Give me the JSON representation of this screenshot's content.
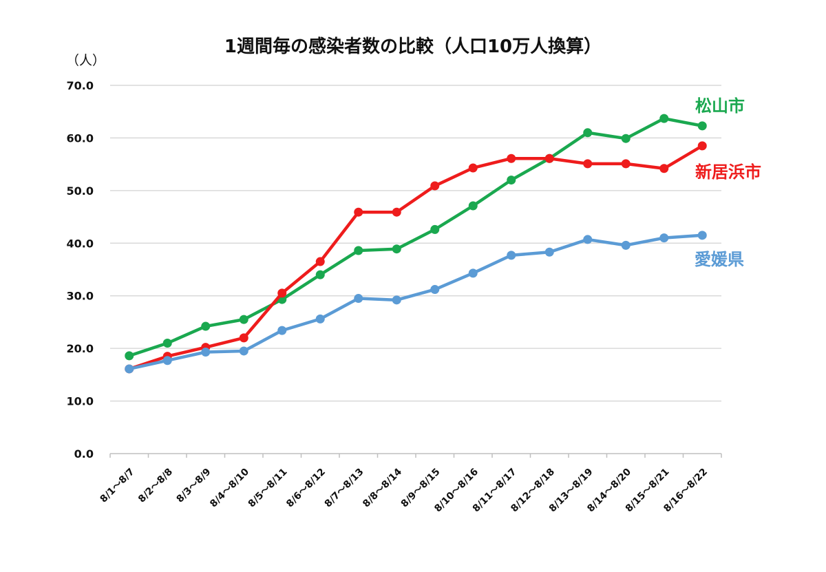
{
  "chart_data": {
    "type": "line",
    "title": "1週間毎の感染者数の比較（人口10万人換算）",
    "ylabel": "（人）",
    "xlabel": "",
    "ylim": [
      0,
      70
    ],
    "yticks": [
      "0.0",
      "10.0",
      "20.0",
      "30.0",
      "40.0",
      "50.0",
      "60.0",
      "70.0"
    ],
    "grid": true,
    "legend": "inline-right",
    "categories": [
      "8/1～8/7",
      "8/2～8/8",
      "8/3～8/9",
      "8/4～8/10",
      "8/5～8/11",
      "8/6～8/12",
      "8/7～8/13",
      "8/8～8/14",
      "8/9～8/15",
      "8/10～8/16",
      "8/11～8/17",
      "8/12～8/18",
      "8/13～8/19",
      "8/14～8/20",
      "8/15～8/21",
      "8/16～8/22"
    ],
    "series": [
      {
        "name": "松山市",
        "color": "#1aa84f",
        "values": [
          18.6,
          21.0,
          24.2,
          25.5,
          29.3,
          34.0,
          38.6,
          38.9,
          42.6,
          47.1,
          52.0,
          56.1,
          61.0,
          59.9,
          63.7,
          62.3
        ]
      },
      {
        "name": "新居浜市",
        "color": "#ee1c1c",
        "values": [
          16.1,
          18.5,
          20.2,
          22.0,
          30.5,
          36.5,
          45.9,
          45.9,
          50.9,
          54.3,
          56.1,
          56.1,
          55.1,
          55.1,
          54.2,
          58.5
        ]
      },
      {
        "name": "愛媛県",
        "color": "#5b9bd5",
        "values": [
          16.1,
          17.7,
          19.3,
          19.5,
          23.4,
          25.6,
          29.5,
          29.2,
          31.2,
          34.3,
          37.7,
          38.3,
          40.7,
          39.6,
          41.0,
          41.5
        ]
      }
    ]
  }
}
